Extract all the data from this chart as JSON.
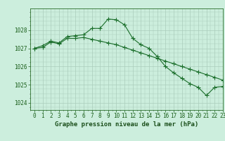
{
  "title": "Graphe pression niveau de la mer (hPa)",
  "background_color": "#cceedd",
  "grid_color": "#aaccbb",
  "line_color": "#1a6e2a",
  "xlim": [
    -0.5,
    23
  ],
  "ylim": [
    1023.6,
    1029.2
  ],
  "yticks": [
    1024,
    1025,
    1026,
    1027,
    1028
  ],
  "xticks": [
    0,
    1,
    2,
    3,
    4,
    5,
    6,
    7,
    8,
    9,
    10,
    11,
    12,
    13,
    14,
    15,
    16,
    17,
    18,
    19,
    20,
    21,
    22,
    23
  ],
  "line1_x": [
    0,
    1,
    2,
    3,
    4,
    5,
    6,
    7,
    8,
    9,
    10,
    11,
    12,
    13,
    14,
    15,
    16,
    17,
    18,
    19,
    20,
    21,
    22,
    23
  ],
  "line1_y": [
    1027.0,
    1027.15,
    1027.4,
    1027.3,
    1027.65,
    1027.7,
    1027.75,
    1028.1,
    1028.1,
    1028.62,
    1028.58,
    1028.3,
    1027.55,
    1027.2,
    1027.0,
    1026.55,
    1026.0,
    1025.65,
    1025.35,
    1025.05,
    1024.85,
    1024.4,
    1024.85,
    1024.9
  ],
  "line2_x": [
    0,
    1,
    2,
    3,
    4,
    5,
    6,
    7,
    8,
    9,
    10,
    11,
    12,
    13,
    14,
    15,
    16,
    17,
    18,
    19,
    20,
    21,
    22,
    23
  ],
  "line2_y": [
    1027.0,
    1027.05,
    1027.35,
    1027.25,
    1027.55,
    1027.55,
    1027.6,
    1027.5,
    1027.4,
    1027.3,
    1027.2,
    1027.05,
    1026.9,
    1026.75,
    1026.6,
    1026.45,
    1026.3,
    1026.15,
    1026.0,
    1025.85,
    1025.7,
    1025.55,
    1025.4,
    1025.25
  ],
  "marker_size": 4,
  "linewidth": 0.8,
  "tick_fontsize": 5.5,
  "title_fontsize": 6.5
}
